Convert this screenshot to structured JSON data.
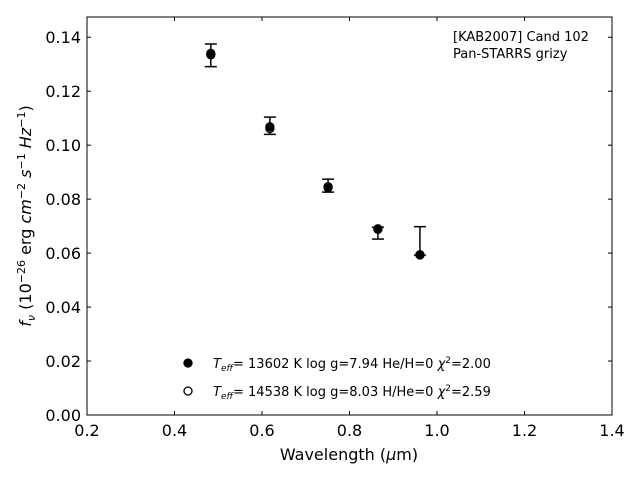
{
  "chart_data": {
    "type": "scatter",
    "title": "",
    "annotation": [
      "[KAB2007] Cand 102",
      "Pan-STARRS grizy"
    ],
    "xlabel": "Wavelength (μm)",
    "ylabel": "fν (10^-26 erg cm^-2 s^-1 Hz^-1)",
    "xlim": [
      0.2,
      1.4
    ],
    "ylim": [
      0.0,
      0.1475
    ],
    "xticks": [
      "0.2",
      "0.4",
      "0.6",
      "0.8",
      "1.0",
      "1.2",
      "1.4"
    ],
    "yticks": [
      "0.00",
      "0.02",
      "0.04",
      "0.06",
      "0.08",
      "0.10",
      "0.12",
      "0.14"
    ],
    "observed": {
      "x": [
        0.483,
        0.618,
        0.751,
        0.865,
        0.961
      ],
      "y": [
        0.1333,
        0.1072,
        0.085,
        0.0674,
        0.0645
      ],
      "yerr": [
        0.0042,
        0.0032,
        0.0024,
        0.0022,
        0.0053
      ]
    },
    "series": [
      {
        "name": "Teff= 13602 K  log g=7.94  He/H=0  χ²=2.00",
        "marker": "filled-circle",
        "label_parts": {
          "teff": "13602 K",
          "logg": "log g=7.94",
          "comp": "He/H=0",
          "chi": "=2.00"
        },
        "x": [
          0.483,
          0.618,
          0.751,
          0.865,
          0.961
        ],
        "y": [
          0.1335,
          0.1068,
          0.0846,
          0.069,
          0.0593
        ]
      },
      {
        "name": "Teff= 14538 K  log g=8.03  H/He=0  χ²=2.59",
        "marker": "open-circle",
        "label_parts": {
          "teff": "14538 K",
          "logg": "log g=8.03",
          "comp": "H/He=0",
          "chi": "=2.59"
        },
        "x": [
          0.483,
          0.618,
          0.751,
          0.865,
          0.961
        ],
        "y": [
          0.134,
          0.1062,
          0.0842,
          0.0688,
          0.0594
        ]
      }
    ],
    "legend_placement": "bottom-center",
    "grid": false
  }
}
